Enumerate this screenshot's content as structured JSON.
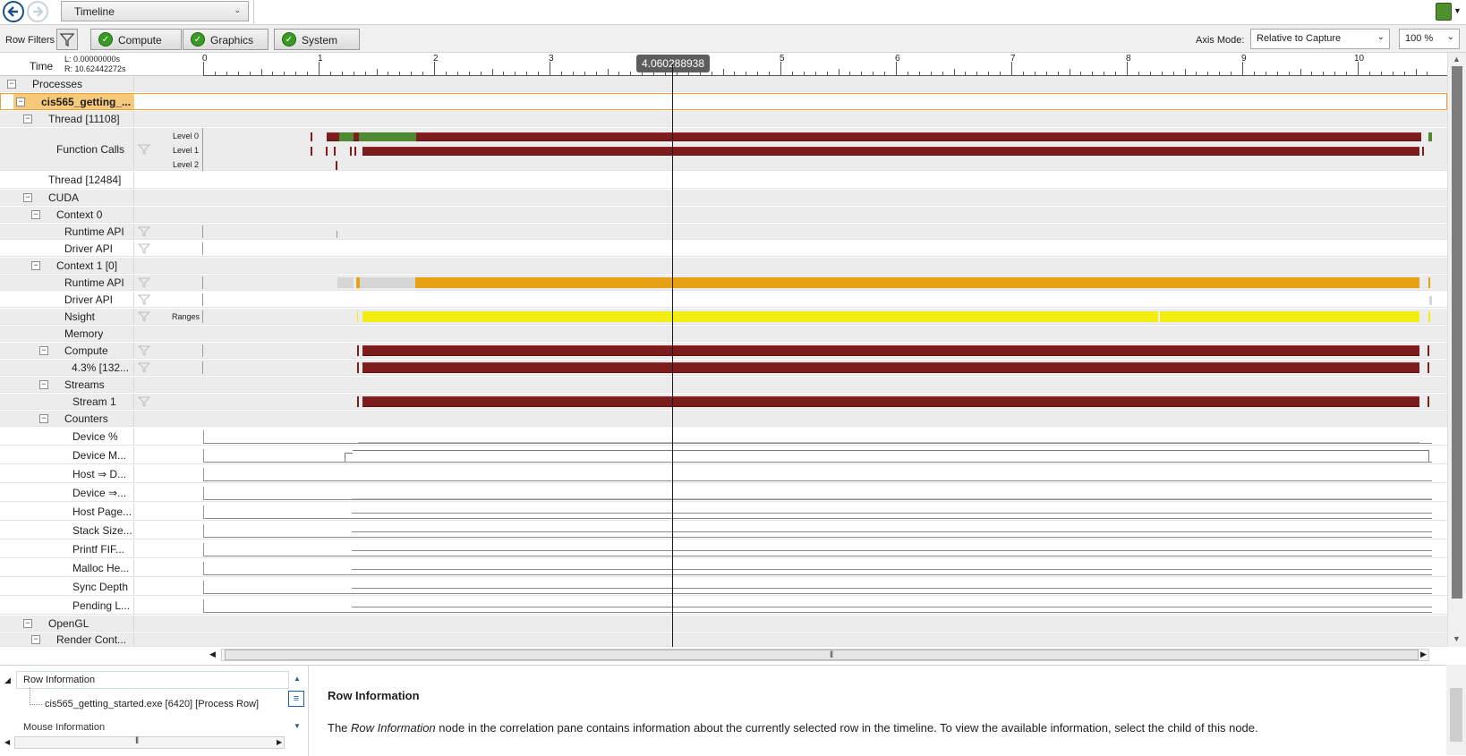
{
  "toolbar": {
    "view_selector": "Timeline"
  },
  "filterbar": {
    "row_filters_label": "Row Filters",
    "categories": [
      "Compute",
      "Graphics",
      "System"
    ],
    "axis_mode_label": "Axis Mode:",
    "axis_mode_value": "Relative to Capture",
    "zoom_value": "100 %"
  },
  "ruler": {
    "time_label": "Time",
    "left_time": "L:  0.00000000s",
    "right_time": "R:  10.62442272s",
    "ticks": [
      "0",
      "1",
      "2",
      "3",
      "4",
      "5",
      "6",
      "7",
      "8",
      "9",
      "10"
    ],
    "cursor_value": "4.060288938"
  },
  "rows": {
    "processes": "Processes",
    "process_name": "cis565_getting_...",
    "thread_1": "Thread [11108]",
    "function_calls": "Function Calls",
    "level0": "Level 0",
    "level1": "Level 1",
    "level2": "Level 2",
    "thread_2": "Thread [12484]",
    "cuda": "CUDA",
    "context0": "Context 0",
    "runtime_api": "Runtime API",
    "driver_api": "Driver API",
    "context1": "Context 1 [0]",
    "nsight": "Nsight",
    "ranges": "Ranges",
    "memory": "Memory",
    "compute": "Compute",
    "kernel": "4.3% [132...",
    "streams": "Streams",
    "stream1": "Stream 1",
    "counters": "Counters",
    "counter_names": [
      "Device %",
      "Device M...",
      "Host ⇒ D...",
      "Device ⇒...",
      "Host Page...",
      "Stack Size...",
      "Printf FIF...",
      "Malloc He...",
      "Sync Depth",
      "Pending L..."
    ],
    "opengl": "OpenGL",
    "render_context": "Render Cont..."
  },
  "bottom": {
    "tree_root": "Row Information",
    "tree_child": "cis565_getting_started.exe [6420] [Process Row]",
    "tree_next": "Mouse Information",
    "info_title": "Row Information",
    "info_body_pre": "The ",
    "info_body_em": "Row Information",
    "info_body_post": " node in the correlation pane contains information about the currently selected row in the timeline. To view the available information, select the child of this node."
  },
  "colors": {
    "kernel_red": "#7d1c1c",
    "cpu_green": "#4e8a32",
    "runtime_orange": "#e8a015",
    "range_yellow": "#f2ee12",
    "selection_orange": "#f0a030"
  }
}
